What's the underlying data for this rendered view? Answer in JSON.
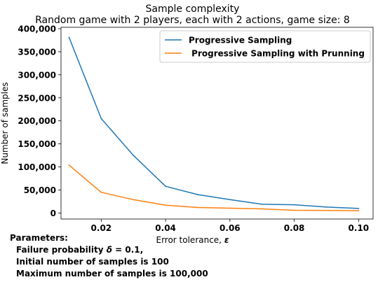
{
  "chart_data": {
    "type": "line",
    "title": "Sample complexity",
    "subtitle": "Random game with 2 players, each with 2 actions, game size: 8",
    "xlabel": "Error tolerance, ",
    "xlabel_symbol": "ε",
    "ylabel": "Number of samples",
    "x": [
      0.01,
      0.02,
      0.03,
      0.04,
      0.05,
      0.06,
      0.07,
      0.08,
      0.09,
      0.1
    ],
    "xlim": [
      0.0075,
      0.1045
    ],
    "ylim": [
      -13000,
      403000
    ],
    "xticks": [
      0.02,
      0.04,
      0.06,
      0.08,
      0.1
    ],
    "xtick_labels": [
      "0.02",
      "0.04",
      "0.06",
      "0.08",
      "0.10"
    ],
    "yticks": [
      0,
      50000,
      100000,
      150000,
      200000,
      250000,
      300000,
      350000,
      400000
    ],
    "ytick_labels": [
      "0",
      "50,000",
      "100,000",
      "150,000",
      "200,000",
      "250,000",
      "300,000",
      "350,000",
      "400,000"
    ],
    "grid": false,
    "legend_position": "top-right",
    "series": [
      {
        "name": "Progressive Sampling",
        "color": "#1f77b4",
        "values": [
          381000,
          205000,
          125000,
          58000,
          40000,
          29000,
          19000,
          18000,
          13000,
          10000
        ]
      },
      {
        "name": " Progressive Sampling with Prunning",
        "color": "#ff7f0e",
        "values": [
          104000,
          45000,
          29000,
          17000,
          12000,
          10500,
          9000,
          6000,
          5500,
          5000
        ]
      }
    ]
  },
  "parameters": {
    "heading": "Parameters:",
    "failure_prefix": "Failure probability ",
    "failure_symbol": "δ",
    "failure_value": " = 0.1,",
    "initial": "Initial number of samples is 100",
    "maximum": "Maximum number of samples is 100,000"
  }
}
